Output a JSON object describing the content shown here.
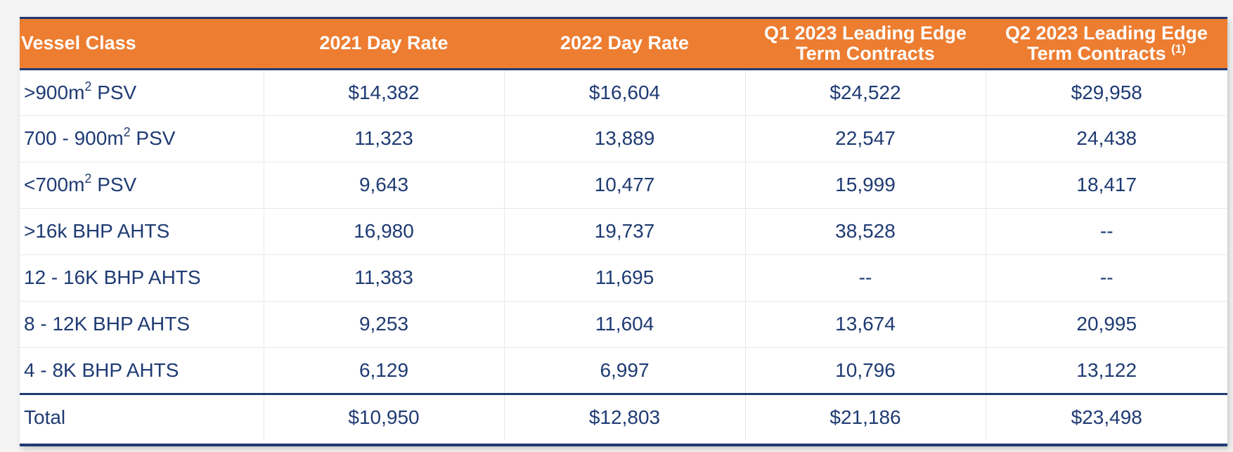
{
  "table": {
    "headers": [
      {
        "text": "Vessel Class",
        "sup": ""
      },
      {
        "text": "2021 Day Rate",
        "sup": ""
      },
      {
        "text": "2022 Day Rate",
        "sup": ""
      },
      {
        "text": "Q1 2023 Leading Edge Term Contracts",
        "sup": ""
      },
      {
        "text": "Q2 2023 Leading Edge Term Contracts",
        "sup": "(1)"
      }
    ],
    "rows": [
      {
        "label_pre": ">900m",
        "label_sup": "2",
        "label_post": " PSV",
        "values": [
          "$14,382",
          "$16,604",
          "$24,522",
          "$29,958"
        ]
      },
      {
        "label_pre": "700 - 900m",
        "label_sup": "2",
        "label_post": " PSV",
        "values": [
          "11,323",
          "13,889",
          "22,547",
          "24,438"
        ]
      },
      {
        "label_pre": "<700m",
        "label_sup": "2",
        "label_post": " PSV",
        "values": [
          "9,643",
          "10,477",
          "15,999",
          "18,417"
        ]
      },
      {
        "label_pre": ">16k BHP AHTS",
        "label_sup": "",
        "label_post": "",
        "values": [
          "16,980",
          "19,737",
          "38,528",
          "--"
        ]
      },
      {
        "label_pre": "12 - 16K BHP AHTS",
        "label_sup": "",
        "label_post": "",
        "values": [
          "11,383",
          "11,695",
          "--",
          "--"
        ]
      },
      {
        "label_pre": "8 - 12K BHP AHTS",
        "label_sup": "",
        "label_post": "",
        "values": [
          "9,253",
          "11,604",
          "13,674",
          "20,995"
        ]
      },
      {
        "label_pre": "4 - 8K BHP AHTS",
        "label_sup": "",
        "label_post": "",
        "values": [
          "6,129",
          "6,997",
          "10,796",
          "13,122"
        ]
      }
    ],
    "total": {
      "label": "Total",
      "values": [
        "$10,950",
        "$12,803",
        "$21,186",
        "$23,498"
      ]
    }
  },
  "colors": {
    "header_bg": "#ed7d31",
    "text": "#1f3b73",
    "rule": "#1f3b73"
  }
}
